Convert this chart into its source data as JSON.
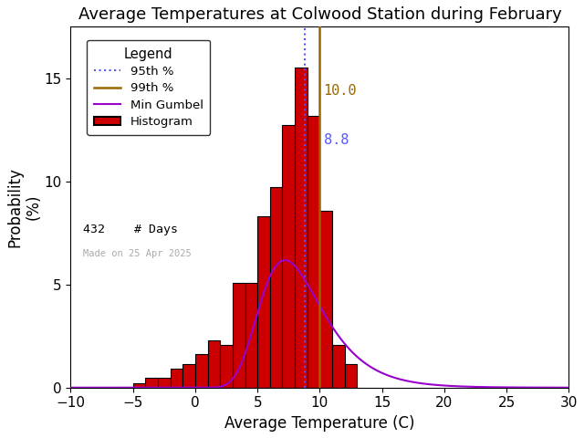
{
  "title": "Average Temperatures at Colwood Station during February",
  "xlabel": "Average Temperature (C)",
  "ylabel": "Probability\n(%)",
  "xlim": [
    -10,
    30
  ],
  "ylim": [
    0,
    17.5
  ],
  "xticks": [
    -10,
    -5,
    0,
    5,
    10,
    15,
    20,
    25,
    30
  ],
  "yticks": [
    0,
    5,
    10,
    15
  ],
  "bin_edges": [
    -8,
    -7,
    -6,
    -5,
    -4,
    -3,
    -2,
    -1,
    0,
    1,
    2,
    3,
    4,
    5,
    6,
    7,
    8,
    9,
    10,
    11,
    12,
    13,
    14,
    15
  ],
  "bar_heights": [
    0.0,
    0.0,
    0.0,
    0.23,
    0.46,
    0.46,
    0.93,
    1.16,
    1.62,
    2.31,
    2.08,
    5.09,
    5.09,
    8.33,
    9.72,
    12.73,
    15.51,
    13.19,
    8.56,
    2.08,
    1.16,
    0.0,
    0.0,
    0.0
  ],
  "bar_color": "#cc0000",
  "bar_edgecolor": "#000000",
  "gumbel_mu": 7.2,
  "gumbel_beta": 2.5,
  "gumbel_scale": 42.0,
  "percentile_95": 8.8,
  "percentile_99": 10.0,
  "percentile_95_color": "#5555ff",
  "percentile_99_color": "#996600",
  "gumbel_color": "#9900cc",
  "n_days": 432,
  "made_on": "Made on 25 Apr 2025",
  "background_color": "#ffffff",
  "legend_box_color": "#ffffff",
  "title_fontsize": 13,
  "axis_fontsize": 12,
  "tick_fontsize": 11
}
